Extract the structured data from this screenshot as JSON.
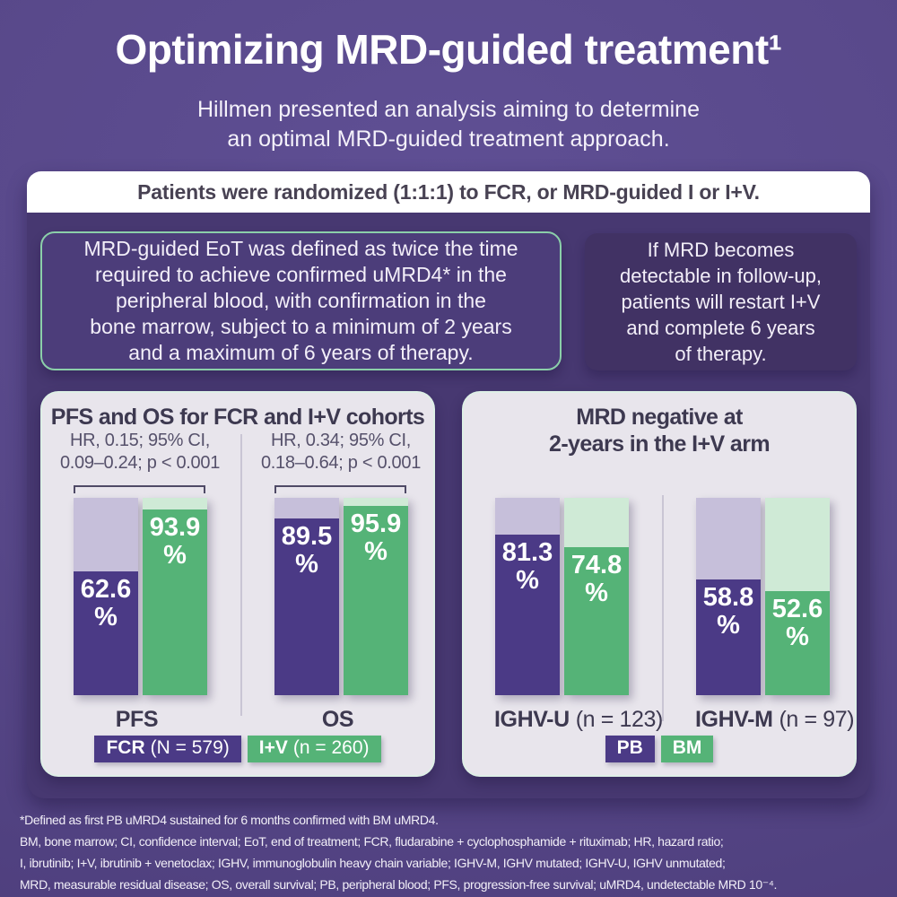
{
  "header": {
    "title": "Optimizing MRD-guided treatment¹",
    "subtitle": "Hillmen presented an analysis aiming to determine\nan optimal MRD-guided treatment approach.",
    "banner": "Patients were randomized (1:1:1) to FCR, or MRD-guided I or I+V."
  },
  "info_boxes": {
    "eot_definition": "MRD-guided EoT was defined as twice the time\nrequired to achieve confirmed uMRD4* in the\nperipheral blood, with confirmation in the\nbone marrow, subject to a minimum of 2 years\nand a maximum of 6 years of therapy.",
    "mrd_restart": "If MRD becomes\ndetectable in follow-up,\npatients will restart I+V\nand complete 6 years\nof therapy."
  },
  "chart_data": [
    {
      "type": "bar",
      "title": "PFS and OS for FCR and I+V cohorts",
      "unit": "%",
      "ylim": [
        0,
        100
      ],
      "grid": false,
      "legend_position": "bottom",
      "categories": [
        {
          "label": "PFS"
        },
        {
          "label": "OS"
        }
      ],
      "series": [
        {
          "name": "FCR",
          "count_label": "(N = 579)",
          "color": "#4b3a86",
          "values": [
            62.6,
            89.5
          ]
        },
        {
          "name": "I+V",
          "count_label": "(n = 260)",
          "color": "#55b377",
          "values": [
            93.9,
            95.9
          ]
        }
      ],
      "annotations": [
        {
          "group": "PFS",
          "line1": "HR, 0.15; 95% CI,",
          "line2": "0.09–0.24; p < 0.001"
        },
        {
          "group": "OS",
          "line1": "HR, 0.34; 95% CI,",
          "line2": "0.18–0.64; p < 0.001"
        }
      ]
    },
    {
      "type": "bar",
      "title": "MRD negative at\n2-years in the I+V arm",
      "unit": "%",
      "ylim": [
        0,
        100
      ],
      "grid": false,
      "legend_position": "bottom",
      "categories": [
        {
          "label": "IGHV-U",
          "count": "(n = 123)"
        },
        {
          "label": "IGHV-M",
          "count": "(n = 97)"
        }
      ],
      "series": [
        {
          "name": "PB",
          "color": "#4b3a86",
          "values": [
            81.3,
            58.8
          ]
        },
        {
          "name": "BM",
          "color": "#55b377",
          "values": [
            74.8,
            52.6
          ]
        }
      ]
    }
  ],
  "footnotes": {
    "line1": "*Defined as first PB uMRD4 sustained for 6 months confirmed with BM uMRD4.",
    "line2": "BM, bone marrow; CI, confidence interval; EoT, end of treatment; FCR, fludarabine + cyclophosphamide + rituximab; HR, hazard ratio;",
    "line3": "I, ibrutinib; I+V, ibrutinib + venetoclax; IGHV, immunoglobulin heavy chain variable; IGHV-M, IGHV mutated; IGHV-U, IGHV unmutated;",
    "line4": "MRD, measurable residual disease; OS, overall survival; PB, peripheral blood; PFS, progression-free survival; uMRD4, undetectable MRD 10⁻⁴."
  },
  "colors": {
    "page_background": "#574788",
    "card_body": "#473871",
    "banner_background": "#ffffff",
    "banner_text": "#484253",
    "info_box_border": "#8bcfa9",
    "panel_background": "#e8e5ec",
    "bar_purple": "#4b3a86",
    "bar_purple_track": "#c6bfda",
    "bar_green": "#55b377",
    "bar_green_track": "#cfead6",
    "dark_text": "#3d3950",
    "annotation_text": "#56516b",
    "footnote_text": "#f2eff8"
  }
}
